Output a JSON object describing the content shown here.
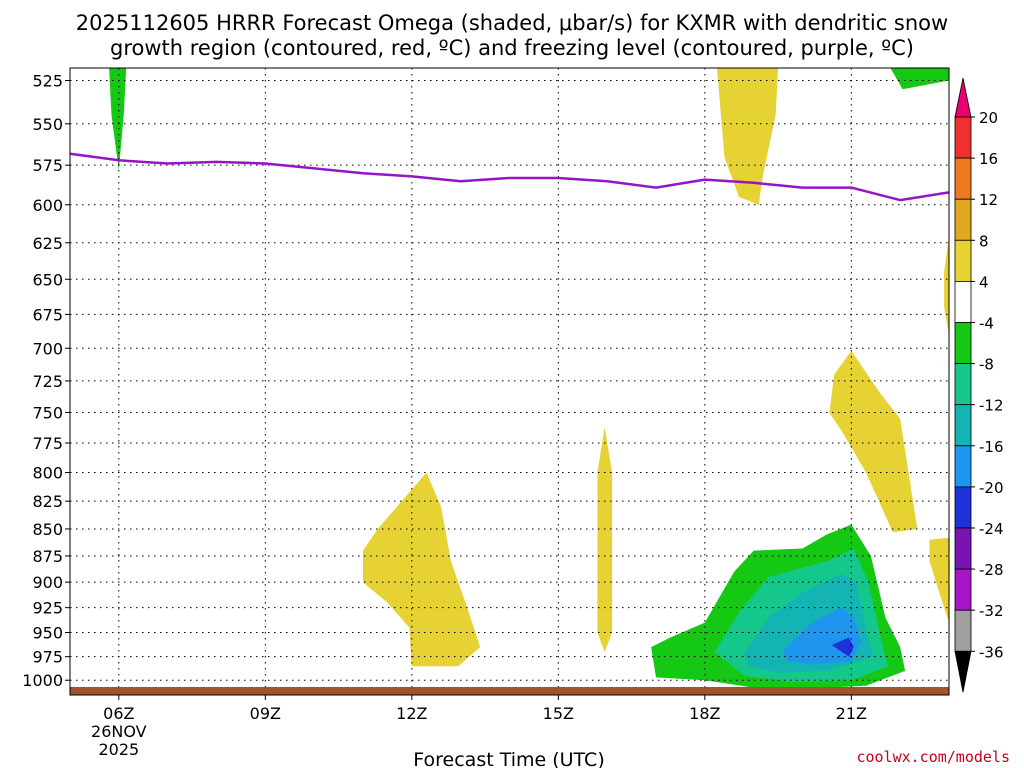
{
  "title_line1": "2025112605 HRRR Forecast Omega (shaded, μbar/s) for KXMR with dendritic snow",
  "title_line2": "growth region (contoured, red, ºC) and freezing level (contoured, purple, ºC)",
  "credit": "coolwx.com/models",
  "chart_data": {
    "type": "time-height cross-section",
    "xlabel": "Forecast Time (UTC)",
    "x_ticks": [
      {
        "hour": 6,
        "label": "06Z",
        "sublabels": [
          "26NOV",
          "2025"
        ]
      },
      {
        "hour": 9,
        "label": "09Z"
      },
      {
        "hour": 12,
        "label": "12Z"
      },
      {
        "hour": 15,
        "label": "15Z"
      },
      {
        "hour": 18,
        "label": "18Z"
      },
      {
        "hour": 21,
        "label": "21Z"
      }
    ],
    "xlim": [
      5.0,
      23.0
    ],
    "y_ticks": [
      525,
      550,
      575,
      600,
      625,
      650,
      675,
      700,
      725,
      750,
      775,
      800,
      825,
      850,
      875,
      900,
      925,
      950,
      975,
      1000
    ],
    "ylim": [
      518,
      1016
    ],
    "y_scale": "log (pressure, hPa)",
    "grid": true,
    "colorbar": {
      "labels": [
        "20",
        "16",
        "12",
        "8",
        "4",
        "-4",
        "-8",
        "-12",
        "-16",
        "-20",
        "-24",
        "-28",
        "-32",
        "-36"
      ],
      "colors": [
        "#e8006e",
        "#f03030",
        "#f07820",
        "#e0a820",
        "#e6d232",
        "#ffffff",
        "#14c814",
        "#14c88c",
        "#14b4b4",
        "#1e96f0",
        "#1e32dc",
        "#7814b4",
        "#aa14c8",
        "#a0a0a0",
        "#000000"
      ]
    },
    "freezing_level": {
      "color": "#9614c8",
      "points": [
        [
          5.0,
          568
        ],
        [
          6.0,
          572
        ],
        [
          7.0,
          574
        ],
        [
          8.0,
          573
        ],
        [
          9.0,
          574
        ],
        [
          10.0,
          577
        ],
        [
          11.0,
          580
        ],
        [
          12.0,
          582
        ],
        [
          13.0,
          585
        ],
        [
          14.0,
          583
        ],
        [
          15.0,
          583
        ],
        [
          16.0,
          585
        ],
        [
          17.0,
          589
        ],
        [
          18.0,
          584
        ],
        [
          19.0,
          586
        ],
        [
          20.0,
          589
        ],
        [
          21.0,
          589
        ],
        [
          22.0,
          597
        ],
        [
          23.0,
          592
        ]
      ]
    },
    "omega_regions": [
      {
        "omega": "-4 to -8",
        "color": "#14c814",
        "points": [
          [
            5.8,
            518
          ],
          [
            6.15,
            518
          ],
          [
            6.1,
            545
          ],
          [
            6.0,
            578
          ],
          [
            5.85,
            545
          ]
        ]
      },
      {
        "omega": "-4 to -8",
        "color": "#14c814",
        "points": [
          [
            21.8,
            518
          ],
          [
            23.0,
            518
          ],
          [
            23.0,
            525
          ],
          [
            22.05,
            530
          ]
        ]
      },
      {
        "omega": "4 to 8",
        "color": "#e6d232",
        "points": [
          [
            18.25,
            518
          ],
          [
            19.5,
            518
          ],
          [
            19.45,
            545
          ],
          [
            19.2,
            580
          ],
          [
            19.1,
            600
          ],
          [
            18.7,
            595
          ],
          [
            18.4,
            570
          ]
        ]
      },
      {
        "omega": "4 to 8",
        "color": "#e6d232",
        "points": [
          [
            23.0,
            620
          ],
          [
            22.9,
            645
          ],
          [
            22.9,
            670
          ],
          [
            23.0,
            690
          ]
        ]
      },
      {
        "omega": "4 to 8",
        "color": "#e6d232",
        "points": [
          [
            20.55,
            750
          ],
          [
            20.65,
            720
          ],
          [
            21.0,
            702
          ],
          [
            21.6,
            735
          ],
          [
            22.0,
            755
          ],
          [
            22.35,
            850
          ],
          [
            21.85,
            853
          ],
          [
            21.3,
            800
          ],
          [
            20.8,
            765
          ]
        ]
      },
      {
        "omega": "4 to 8",
        "color": "#e6d232",
        "points": [
          [
            11.0,
            870
          ],
          [
            11.3,
            850
          ],
          [
            12.3,
            800
          ],
          [
            12.6,
            830
          ],
          [
            12.8,
            880
          ],
          [
            13.1,
            920
          ],
          [
            13.4,
            965
          ],
          [
            12.95,
            985
          ],
          [
            12.0,
            985
          ],
          [
            11.95,
            945
          ],
          [
            11.5,
            920
          ],
          [
            11.0,
            900
          ]
        ]
      },
      {
        "omega": "4 to 8",
        "color": "#e6d232",
        "points": [
          [
            15.8,
            800
          ],
          [
            15.95,
            762
          ],
          [
            16.1,
            800
          ],
          [
            16.1,
            950
          ],
          [
            15.95,
            970
          ],
          [
            15.8,
            950
          ]
        ]
      },
      {
        "omega": "4 to 8",
        "color": "#e6d232",
        "points": [
          [
            22.6,
            860
          ],
          [
            23.0,
            858
          ],
          [
            23.0,
            940
          ],
          [
            22.8,
            910
          ],
          [
            22.6,
            880
          ]
        ]
      },
      {
        "omega": "-4 to -8",
        "color": "#14c814",
        "points": [
          [
            16.9,
            965
          ],
          [
            17.3,
            955
          ],
          [
            18.0,
            940
          ],
          [
            18.6,
            890
          ],
          [
            19.0,
            870
          ],
          [
            20.0,
            868
          ],
          [
            20.5,
            855
          ],
          [
            21.0,
            846
          ],
          [
            21.4,
            875
          ],
          [
            21.7,
            935
          ],
          [
            22.0,
            965
          ],
          [
            22.1,
            990
          ],
          [
            21.3,
            1006
          ],
          [
            20.5,
            1008
          ],
          [
            19.0,
            1008
          ],
          [
            18.0,
            1000
          ],
          [
            17.0,
            997
          ]
        ]
      },
      {
        "omega": "-8 to -12",
        "color": "#14c88c",
        "points": [
          [
            18.2,
            970
          ],
          [
            18.7,
            930
          ],
          [
            19.3,
            895
          ],
          [
            20.5,
            880
          ],
          [
            21.05,
            868
          ],
          [
            21.35,
            900
          ],
          [
            21.6,
            955
          ],
          [
            21.75,
            985
          ],
          [
            21.0,
            1000
          ],
          [
            19.8,
            1002
          ],
          [
            18.8,
            995
          ]
        ]
      },
      {
        "omega": "-12 to -16",
        "color": "#14b4b4",
        "points": [
          [
            18.8,
            972
          ],
          [
            19.3,
            935
          ],
          [
            20.0,
            910
          ],
          [
            20.8,
            892
          ],
          [
            21.1,
            900
          ],
          [
            21.3,
            945
          ],
          [
            21.45,
            975
          ],
          [
            20.5,
            990
          ],
          [
            19.5,
            992
          ],
          [
            18.9,
            985
          ]
        ]
      },
      {
        "omega": "-16 to -20",
        "color": "#1e96f0",
        "points": [
          [
            19.6,
            968
          ],
          [
            20.2,
            940
          ],
          [
            20.8,
            925
          ],
          [
            21.05,
            935
          ],
          [
            21.2,
            960
          ],
          [
            21.0,
            980
          ],
          [
            20.2,
            983
          ],
          [
            19.7,
            980
          ]
        ]
      },
      {
        "omega": "-20 to -24",
        "color": "#1e32dc",
        "points": [
          [
            20.6,
            963
          ],
          [
            20.95,
            955
          ],
          [
            21.05,
            965
          ],
          [
            20.95,
            975
          ]
        ]
      }
    ]
  }
}
